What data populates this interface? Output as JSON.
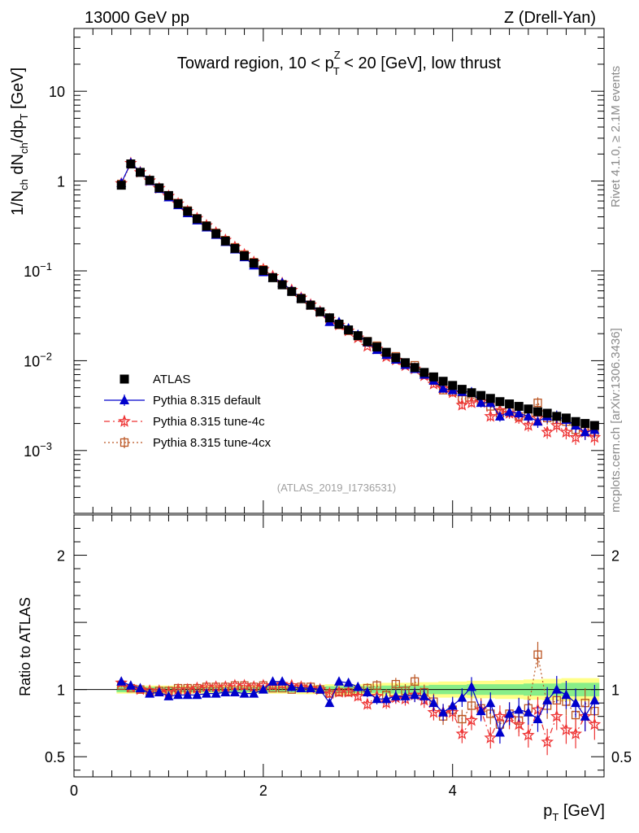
{
  "header": {
    "left": "13000 GeV pp",
    "right": "Z (Drell-Yan)"
  },
  "side_text": {
    "rivet": "Rivet 4.1.0, ≥ 2.1M events",
    "mcplots": "mcplots.cern.ch [arXiv:1306.3436]"
  },
  "analysis_id": "(ATLAS_2019_I1736531)",
  "colors": {
    "atlas": "#000000",
    "default": "#0000cc",
    "tune4c": "#ee3333",
    "tune4cx": "#bb5522",
    "band_inner": "#88ee88",
    "band_outer": "#ffff88"
  },
  "chart_data": [
    {
      "type": "line",
      "panel": "main",
      "title_parts": {
        "pre": "Toward region, 10 < p",
        "sup": "Z",
        "sub": "T",
        "post": " < 20 [GeV], low thrust"
      },
      "ylabel_parts": {
        "a": "1/N",
        "a_sub": "ch",
        "b": " dN",
        "b_sub": "ch",
        "c": "/dp",
        "c_sub": "T",
        "d": " [GeV]"
      },
      "yscale": "log",
      "ylim": [
        0.0002,
        50
      ],
      "xlim": [
        0,
        5.6
      ],
      "yticks": [
        {
          "v": 10,
          "t": "10"
        },
        {
          "v": 1,
          "t": "1"
        },
        {
          "v": 0.1,
          "base": "10",
          "exp": "−1"
        },
        {
          "v": 0.01,
          "base": "10",
          "exp": "−2"
        },
        {
          "v": 0.001,
          "base": "10",
          "exp": "−3"
        }
      ],
      "x": [
        0.5,
        0.6,
        0.7,
        0.8,
        0.9,
        1.0,
        1.1,
        1.2,
        1.3,
        1.4,
        1.5,
        1.6,
        1.7,
        1.8,
        1.9,
        2.0,
        2.1,
        2.2,
        2.3,
        2.4,
        2.5,
        2.6,
        2.7,
        2.8,
        2.9,
        3.0,
        3.1,
        3.2,
        3.3,
        3.4,
        3.5,
        3.6,
        3.7,
        3.8,
        3.9,
        4.0,
        4.1,
        4.2,
        4.3,
        4.4,
        4.5,
        4.6,
        4.7,
        4.8,
        4.9,
        5.0,
        5.1,
        5.2,
        5.3,
        5.4,
        5.5
      ],
      "series": [
        {
          "name": "ATLAS",
          "values": [
            0.9,
            1.55,
            1.25,
            1.02,
            0.84,
            0.69,
            0.56,
            0.46,
            0.38,
            0.315,
            0.26,
            0.215,
            0.178,
            0.147,
            0.122,
            0.101,
            0.084,
            0.07,
            0.059,
            0.049,
            0.0415,
            0.035,
            0.03,
            0.0255,
            0.022,
            0.019,
            0.0163,
            0.0142,
            0.0124,
            0.0108,
            0.0095,
            0.0084,
            0.0074,
            0.0066,
            0.0059,
            0.0053,
            0.0048,
            0.0044,
            0.0041,
            0.0038,
            0.0035,
            0.0033,
            0.0031,
            0.0029,
            0.0027,
            0.0026,
            0.0024,
            0.0023,
            0.0021,
            0.002,
            0.0019
          ]
        },
        {
          "name": "Pythia 8.315 default",
          "values": [
            0.95,
            1.6,
            1.27,
            1.0,
            0.82,
            0.66,
            0.54,
            0.44,
            0.365,
            0.305,
            0.252,
            0.21,
            0.174,
            0.142,
            0.115,
            0.097,
            0.084,
            0.074,
            0.06,
            0.05,
            0.042,
            0.035,
            0.027,
            0.027,
            0.023,
            0.0195,
            0.016,
            0.0132,
            0.0116,
            0.0103,
            0.009,
            0.0081,
            0.007,
            0.006,
            0.0049,
            0.0047,
            0.0045,
            0.0045,
            0.0034,
            0.0034,
            0.0024,
            0.0027,
            0.0026,
            0.0024,
            0.0021,
            0.0024,
            0.0024,
            0.0022,
            0.0019,
            0.0016,
            0.0017
          ]
        },
        {
          "name": "Pythia 8.315 tune-4c",
          "values": [
            0.94,
            1.58,
            1.25,
            1.01,
            0.83,
            0.68,
            0.56,
            0.46,
            0.385,
            0.32,
            0.266,
            0.22,
            0.184,
            0.152,
            0.125,
            0.104,
            0.087,
            0.073,
            0.061,
            0.05,
            0.042,
            0.035,
            0.029,
            0.025,
            0.0215,
            0.018,
            0.0145,
            0.0135,
            0.0111,
            0.0102,
            0.0088,
            0.0081,
            0.0068,
            0.0055,
            0.0049,
            0.0044,
            0.0032,
            0.0034,
            0.0035,
            0.0024,
            0.0028,
            0.0026,
            0.0023,
            0.0019,
            0.0023,
            0.0016,
            0.0019,
            0.0016,
            0.0014,
            0.0016,
            0.0014
          ]
        },
        {
          "name": "Pythia 8.315 tune-4cx",
          "values": [
            0.93,
            1.56,
            1.25,
            1.0,
            0.83,
            0.69,
            0.57,
            0.47,
            0.385,
            0.32,
            0.265,
            0.22,
            0.183,
            0.152,
            0.125,
            0.104,
            0.085,
            0.071,
            0.059,
            0.05,
            0.042,
            0.035,
            0.029,
            0.025,
            0.0215,
            0.0188,
            0.0165,
            0.0147,
            0.0119,
            0.0112,
            0.0094,
            0.0089,
            0.0073,
            0.006,
            0.0047,
            0.0045,
            0.0037,
            0.0039,
            0.0035,
            0.0031,
            0.0026,
            0.0027,
            0.0024,
            0.0025,
            0.0034,
            0.0023,
            0.0022,
            0.0021,
            0.0017,
            0.0018,
            0.0016
          ]
        }
      ],
      "legend": [
        "ATLAS",
        "Pythia 8.315 default",
        "Pythia 8.315 tune-4c",
        "Pythia 8.315 tune-4cx"
      ]
    },
    {
      "type": "line",
      "panel": "ratio",
      "ylabel": "Ratio to ATLAS",
      "ylim": [
        0.35,
        2.3
      ],
      "yticks": [
        {
          "v": 0.5,
          "t": "0.5"
        },
        {
          "v": 1,
          "t": "1"
        },
        {
          "v": 2,
          "t": "2"
        }
      ],
      "xticks": [
        {
          "v": 0,
          "t": "0"
        },
        {
          "v": 2,
          "t": "2"
        },
        {
          "v": 4,
          "t": "4"
        }
      ],
      "xlabel_parts": {
        "p": "p",
        "sub": "T",
        "post": " [GeV]"
      },
      "band_inner_halfwidth": [
        0.02,
        0.02,
        0.02,
        0.02,
        0.02,
        0.02,
        0.02,
        0.02,
        0.02,
        0.02,
        0.02,
        0.02,
        0.02,
        0.02,
        0.02,
        0.02,
        0.02,
        0.02,
        0.02,
        0.02,
        0.02,
        0.02,
        0.025,
        0.025,
        0.025,
        0.025,
        0.025,
        0.025,
        0.03,
        0.03,
        0.03,
        0.03,
        0.03,
        0.035,
        0.035,
        0.035,
        0.035,
        0.04,
        0.04,
        0.04,
        0.04,
        0.04,
        0.04,
        0.045,
        0.045,
        0.045,
        0.045,
        0.05,
        0.05,
        0.05,
        0.05
      ],
      "band_outer_halfwidth": [
        0.03,
        0.03,
        0.03,
        0.03,
        0.03,
        0.03,
        0.03,
        0.03,
        0.03,
        0.03,
        0.03,
        0.03,
        0.03,
        0.03,
        0.03,
        0.03,
        0.03,
        0.03,
        0.03,
        0.035,
        0.035,
        0.035,
        0.04,
        0.04,
        0.04,
        0.04,
        0.045,
        0.045,
        0.05,
        0.05,
        0.05,
        0.05,
        0.055,
        0.055,
        0.06,
        0.06,
        0.06,
        0.065,
        0.065,
        0.065,
        0.07,
        0.07,
        0.07,
        0.075,
        0.075,
        0.08,
        0.08,
        0.085,
        0.085,
        0.085,
        0.085
      ],
      "series": [
        {
          "name": "Pythia 8.315 default",
          "values": [
            1.06,
            1.03,
            1.01,
            0.97,
            0.98,
            0.95,
            0.96,
            0.96,
            0.96,
            0.97,
            0.97,
            0.98,
            0.98,
            0.97,
            0.97,
            1.0,
            1.06,
            1.06,
            1.02,
            1.01,
            1.01,
            1.0,
            0.9,
            1.06,
            1.05,
            1.02,
            0.98,
            0.93,
            0.93,
            0.95,
            0.95,
            0.96,
            0.95,
            0.9,
            0.83,
            0.88,
            0.94,
            1.02,
            0.84,
            0.9,
            0.68,
            0.82,
            0.85,
            0.83,
            0.78,
            0.92,
            1.0,
            0.96,
            0.9,
            0.8,
            0.92
          ]
        },
        {
          "name": "Pythia 8.315 tune-4c",
          "values": [
            1.05,
            1.02,
            1.0,
            0.99,
            0.99,
            0.98,
            1.0,
            1.0,
            1.01,
            1.02,
            1.02,
            1.02,
            1.03,
            1.03,
            1.02,
            1.03,
            1.03,
            1.04,
            1.03,
            1.02,
            1.01,
            1.0,
            0.97,
            0.98,
            0.98,
            0.95,
            0.89,
            0.95,
            0.9,
            0.94,
            0.93,
            0.96,
            0.92,
            0.83,
            0.83,
            0.83,
            0.67,
            0.77,
            0.85,
            0.64,
            0.8,
            0.79,
            0.74,
            0.66,
            0.85,
            0.61,
            0.8,
            0.7,
            0.67,
            0.8,
            0.74
          ]
        },
        {
          "name": "Pythia 8.315 tune-4cx",
          "values": [
            1.03,
            1.01,
            1.0,
            0.98,
            0.99,
            0.99,
            1.01,
            1.01,
            1.01,
            1.02,
            1.02,
            1.02,
            1.03,
            1.03,
            1.02,
            1.03,
            1.01,
            1.01,
            1.0,
            1.02,
            1.02,
            1.0,
            0.97,
            0.98,
            0.98,
            0.99,
            1.01,
            1.03,
            0.96,
            1.04,
            0.99,
            1.06,
            0.98,
            0.91,
            0.8,
            0.85,
            0.78,
            0.88,
            0.86,
            0.82,
            0.74,
            0.82,
            0.77,
            0.86,
            1.26,
            0.88,
            0.92,
            0.91,
            0.81,
            0.9,
            0.84
          ]
        }
      ]
    }
  ]
}
